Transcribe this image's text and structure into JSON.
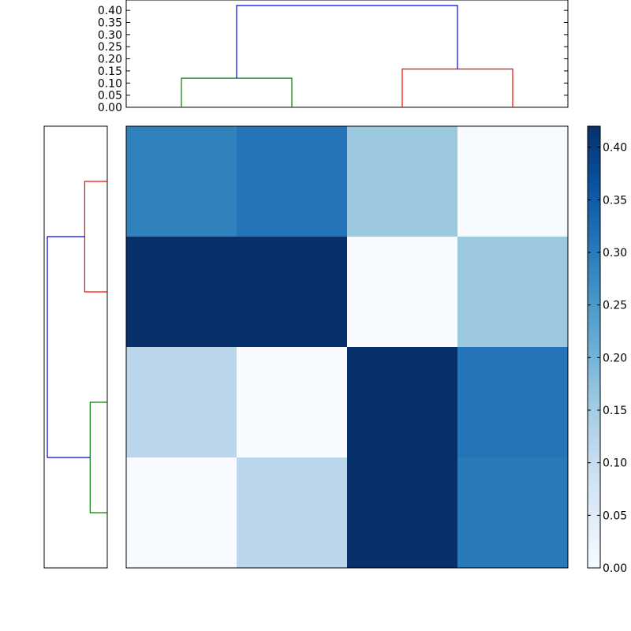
{
  "chart_data": [
    {
      "type": "dendrogram",
      "orientation": "top",
      "ylim": [
        0,
        0.42
      ],
      "ytick_labels": [
        "0.00",
        "0.05",
        "0.10",
        "0.15",
        "0.20",
        "0.25",
        "0.30",
        "0.35",
        "0.40"
      ],
      "leaves": [
        0,
        1,
        2,
        3
      ],
      "links": [
        {
          "left": [
            0,
            1
          ],
          "height": 0.12,
          "color": "#008000"
        },
        {
          "left": [
            2,
            3
          ],
          "height": 0.158,
          "color": "#ff0000"
        },
        {
          "left": [
            0.5,
            2.5
          ],
          "height": 0.42,
          "color": "#0000ff"
        }
      ]
    },
    {
      "type": "dendrogram",
      "orientation": "left",
      "leaves": [
        0,
        1,
        2,
        3
      ],
      "links": [
        {
          "left": [
            0,
            1
          ],
          "height": 0.158,
          "color": "#ff0000"
        },
        {
          "left": [
            2,
            3
          ],
          "height": 0.12,
          "color": "#008000"
        },
        {
          "left": [
            0.5,
            2.5
          ],
          "height": 0.42,
          "color": "#0000ff"
        }
      ]
    },
    {
      "type": "heatmap",
      "values": [
        [
          0.29,
          0.31,
          0.16,
          0.0
        ],
        [
          0.42,
          0.42,
          0.0,
          0.16
        ],
        [
          0.12,
          0.0,
          0.42,
          0.31
        ],
        [
          0.0,
          0.12,
          0.42,
          0.3
        ]
      ],
      "vmin": 0,
      "vmax": 0.42,
      "colormap": "Blues",
      "colorbar_ticks": [
        0.0,
        0.05,
        0.1,
        0.15,
        0.2,
        0.25,
        0.3,
        0.35,
        0.4
      ],
      "colorbar_tick_labels": [
        "0.00",
        "0.05",
        "0.10",
        "0.15",
        "0.20",
        "0.25",
        "0.30",
        "0.35",
        "0.40"
      ]
    }
  ]
}
